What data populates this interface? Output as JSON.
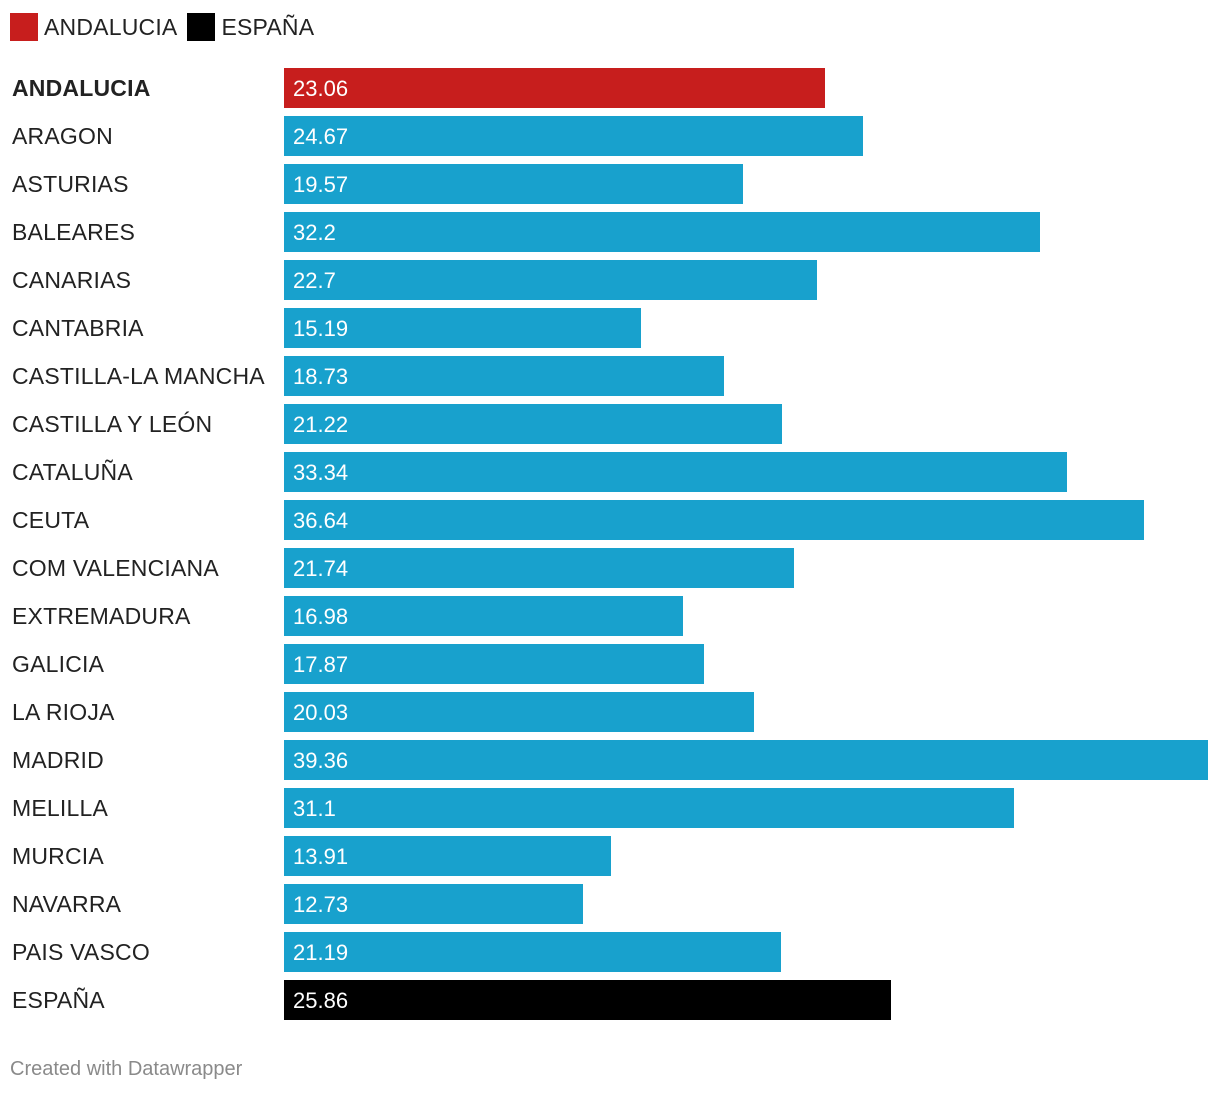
{
  "legend": [
    {
      "label": "ANDALUCIA",
      "color": "#c71e1d"
    },
    {
      "label": "ESPAÑA",
      "color": "#000000"
    }
  ],
  "chart_data": {
    "type": "bar",
    "orientation": "horizontal",
    "title": "",
    "xlabel": "",
    "ylabel": "",
    "xlim": [
      0,
      39.36
    ],
    "grid": false,
    "legend_position": "top-left",
    "categories": [
      "ANDALUCIA",
      "ARAGON",
      "ASTURIAS",
      "BALEARES",
      "CANARIAS",
      "CANTABRIA",
      "CASTILLA-LA MANCHA",
      "CASTILLA Y LEÓN",
      "CATALUÑA",
      "CEUTA",
      "COM VALENCIANA",
      "EXTREMADURA",
      "GALICIA",
      "LA RIOJA",
      "MADRID",
      "MELILLA",
      "MURCIA",
      "NAVARRA",
      "PAIS VASCO",
      "ESPAÑA"
    ],
    "values": [
      23.06,
      24.67,
      19.57,
      32.2,
      22.7,
      15.19,
      18.73,
      21.22,
      33.34,
      36.64,
      21.74,
      16.98,
      17.87,
      20.03,
      39.36,
      31.1,
      13.91,
      12.73,
      21.19,
      25.86
    ],
    "value_labels": [
      "23.06",
      "24.67",
      "19.57",
      "32.2",
      "22.7",
      "15.19",
      "18.73",
      "21.22",
      "33.34",
      "36.64",
      "21.74",
      "16.98",
      "17.87",
      "20.03",
      "39.36",
      "31.1",
      "13.91",
      "12.73",
      "21.19",
      "25.86"
    ],
    "highlight": {
      "ANDALUCIA": "#c71e1d",
      "ESPAÑA": "#000000"
    },
    "default_color": "#18a1cd",
    "bold_categories": [
      "ANDALUCIA"
    ]
  },
  "footer": {
    "credit": "Created with Datawrapper"
  }
}
